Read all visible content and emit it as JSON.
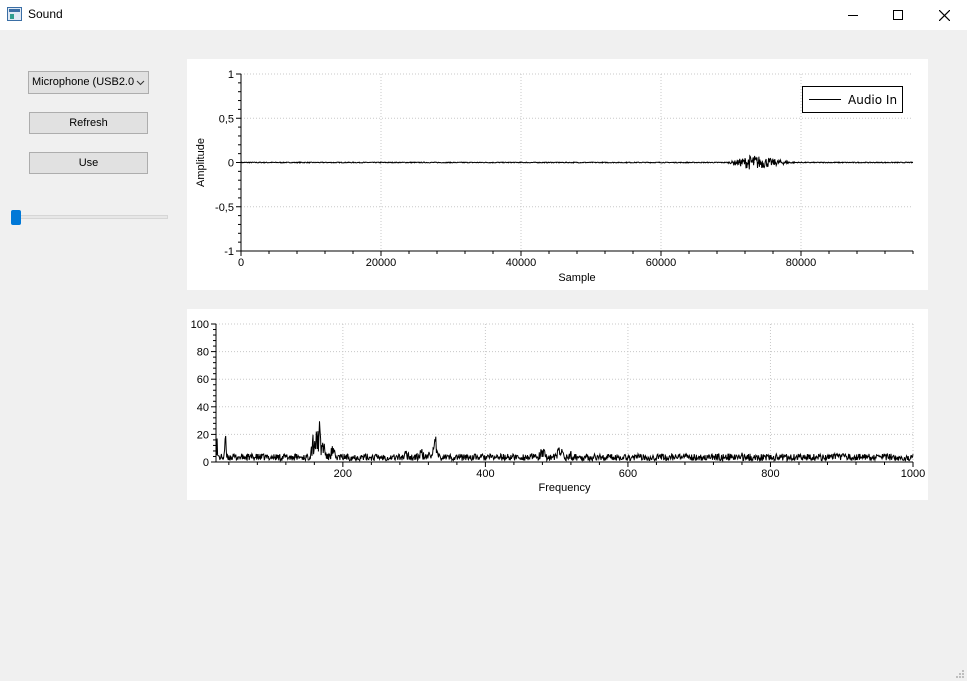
{
  "window": {
    "title": "Sound"
  },
  "controls": {
    "device_select_value": "Microphone (USB2.0",
    "refresh_label": "Refresh",
    "use_label": "Use",
    "volume_level": 0.02
  },
  "chart_data": [
    {
      "type": "line",
      "title": "",
      "xlabel": "Sample",
      "ylabel": "Amplitude",
      "xlim": [
        0,
        96000
      ],
      "ylim": [
        -1,
        1
      ],
      "x_ticks": [
        "0",
        "20000",
        "40000",
        "60000",
        "80000"
      ],
      "x_tick_values": [
        0,
        20000,
        40000,
        60000,
        80000
      ],
      "y_ticks": [
        "1",
        "0,5",
        "0",
        "-0,5",
        "-1"
      ],
      "y_tick_values": [
        1,
        0.5,
        0,
        -0.5,
        -1
      ],
      "grid": true,
      "legend": {
        "position": "top-right",
        "entries": [
          "Audio In"
        ]
      },
      "series": [
        {
          "name": "Audio In",
          "baseline": 0,
          "noise_amplitude": 0.005,
          "bursts": [
            {
              "x_start": 69000,
              "x_end": 80000,
              "peak_x": 73000,
              "peak_amplitude": 0.09
            }
          ]
        }
      ]
    },
    {
      "type": "line",
      "title": "",
      "xlabel": "Frequency",
      "ylabel": "",
      "xlim": [
        22,
        1000
      ],
      "ylim": [
        0,
        100
      ],
      "x_ticks": [
        "200",
        "400",
        "600",
        "800",
        "1000"
      ],
      "x_tick_values": [
        200,
        400,
        600,
        800,
        1000
      ],
      "y_ticks": [
        "100",
        "80",
        "60",
        "40",
        "20",
        "0"
      ],
      "y_tick_values": [
        100,
        80,
        60,
        40,
        20,
        0
      ],
      "grid": true,
      "series": [
        {
          "floor_max": 6,
          "peaks": [
            {
              "x": 22,
              "y": 36,
              "width": 2
            },
            {
              "x": 35,
              "y": 21,
              "width": 2
            },
            {
              "x": 160,
              "y": 26,
              "width": 7
            },
            {
              "x": 166,
              "y": 34,
              "width": 4
            },
            {
              "x": 172,
              "y": 20,
              "width": 5
            },
            {
              "x": 185,
              "y": 12,
              "width": 6
            },
            {
              "x": 325,
              "y": 14,
              "width": 6
            },
            {
              "x": 330,
              "y": 20,
              "width": 3
            },
            {
              "x": 310,
              "y": 10,
              "width": 6
            },
            {
              "x": 290,
              "y": 9,
              "width": 8
            },
            {
              "x": 480,
              "y": 10,
              "width": 8
            },
            {
              "x": 505,
              "y": 14,
              "width": 6
            },
            {
              "x": 520,
              "y": 8,
              "width": 6
            },
            {
              "x": 760,
              "y": 7,
              "width": 3
            },
            {
              "x": 830,
              "y": 7,
              "width": 8
            }
          ]
        }
      ]
    }
  ]
}
